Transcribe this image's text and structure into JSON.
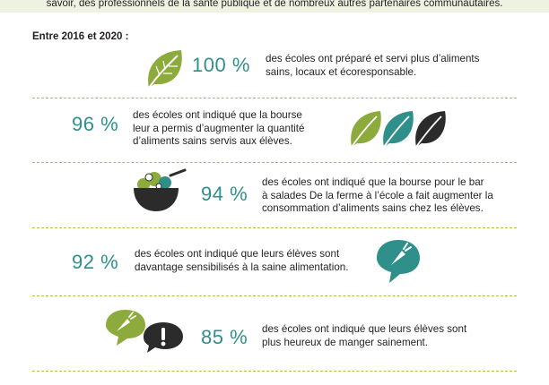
{
  "header": {
    "top_text": "savoir, des professionnels de la santé publique et de nombreux autres partenaires communautaires."
  },
  "intro": "Entre 2016 et 2020 :",
  "colors": {
    "teal": "#2f8f8a",
    "green": "#8cab3c",
    "dark": "#2b2b2b",
    "separator": "#a8c34a"
  },
  "stats": [
    {
      "percent": "100 %",
      "lines": [
        "des écoles ont préparé et servi plus d’aliments",
        "sains, locaux et écoresponsable."
      ],
      "icon": "leaf-icon"
    },
    {
      "percent": "96 %",
      "lines": [
        "des écoles ont indiqué que la bourse",
        "leur a permis d’augmenter la quantité",
        "d’aliments sains servis aux élèves."
      ],
      "icon": "three-leaves-icon"
    },
    {
      "percent": "94 %",
      "lines": [
        "des écoles ont indiqué que la bourse pour le bar",
        "à salades De la ferme à l’école a fait augmenter la",
        "consommation d’aliments sains chez les élèves."
      ],
      "icon": "salad-bowl-icon"
    },
    {
      "percent": "92 %",
      "lines": [
        "des écoles ont indiqué que leurs élèves sont",
        "davantage sensibilisés à la saine alimentation."
      ],
      "icon": "carrot-speech-bubble-icon"
    },
    {
      "percent": "85 %",
      "lines": [
        "des écoles ont indiqué que leurs élèves sont",
        "plus heureux de manger sainement."
      ],
      "icon": "speech-bubbles-icon"
    }
  ]
}
